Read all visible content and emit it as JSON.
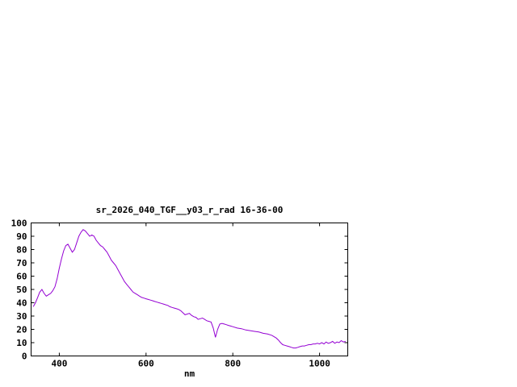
{
  "page": {
    "background": "#ffffff",
    "text_color": "#000000"
  },
  "chart_data": {
    "type": "line",
    "title": "sr_2026_040_TGF__y03_r_rad 16-36-00",
    "xlabel": "nm",
    "ylabel": "",
    "xlim": [
      335,
      1065
    ],
    "ylim": [
      0,
      100
    ],
    "xticks": [
      400,
      600,
      800,
      1000
    ],
    "yticks": [
      0,
      10,
      20,
      30,
      40,
      50,
      60,
      70,
      80,
      90,
      100
    ],
    "grid": false,
    "legend": "none",
    "line_color": "#9400D3",
    "axis_color": "#000000",
    "x": [
      340,
      345,
      350,
      355,
      360,
      365,
      370,
      375,
      380,
      385,
      390,
      395,
      400,
      405,
      410,
      415,
      420,
      425,
      430,
      435,
      440,
      445,
      450,
      455,
      460,
      465,
      470,
      475,
      480,
      485,
      490,
      495,
      500,
      505,
      510,
      515,
      520,
      525,
      530,
      535,
      540,
      545,
      550,
      555,
      560,
      565,
      570,
      575,
      580,
      585,
      590,
      595,
      600,
      605,
      610,
      615,
      620,
      625,
      630,
      635,
      640,
      645,
      650,
      655,
      660,
      665,
      670,
      675,
      680,
      685,
      690,
      695,
      700,
      705,
      710,
      715,
      720,
      725,
      730,
      735,
      740,
      745,
      750,
      755,
      760,
      765,
      770,
      775,
      780,
      785,
      790,
      795,
      800,
      810,
      820,
      830,
      840,
      850,
      860,
      870,
      880,
      890,
      900,
      905,
      910,
      915,
      920,
      925,
      930,
      935,
      940,
      945,
      950,
      955,
      960,
      965,
      970,
      975,
      980,
      985,
      990,
      995,
      1000,
      1005,
      1010,
      1015,
      1020,
      1025,
      1030,
      1035,
      1040,
      1045,
      1050,
      1055,
      1060
    ],
    "y": [
      37,
      40,
      44,
      48,
      50,
      47,
      45,
      46,
      47,
      49,
      52,
      58,
      66,
      73,
      79,
      83,
      84,
      81,
      78,
      80,
      85,
      90,
      93,
      95,
      94,
      92,
      90,
      91,
      90,
      87,
      85,
      83,
      82,
      80,
      78,
      75,
      72,
      70,
      68,
      65,
      62,
      59,
      56,
      54,
      52,
      50,
      48,
      47,
      46,
      45,
      44,
      43.5,
      43,
      42.5,
      42,
      41.5,
      41,
      40.5,
      40,
      39.5,
      39,
      38.5,
      38,
      37,
      36.5,
      36,
      35.5,
      35,
      34,
      32.5,
      31,
      31.5,
      32,
      30.5,
      29.5,
      29,
      27.5,
      28,
      28.5,
      27.5,
      26.5,
      26,
      25.5,
      21,
      14,
      20,
      24,
      24.5,
      24,
      23.5,
      23,
      22.5,
      22,
      21,
      20.5,
      19.5,
      19,
      18.5,
      18,
      17,
      16.5,
      15.5,
      13.5,
      12,
      10,
      8.5,
      8,
      7.5,
      7,
      6.5,
      6,
      6,
      6.5,
      7,
      7.5,
      7.5,
      8,
      8.5,
      8.5,
      9,
      9,
      9.5,
      9,
      10,
      9,
      10.5,
      9.5,
      10,
      11,
      9.5,
      10.5,
      10,
      11.5,
      10.5,
      11
    ]
  }
}
